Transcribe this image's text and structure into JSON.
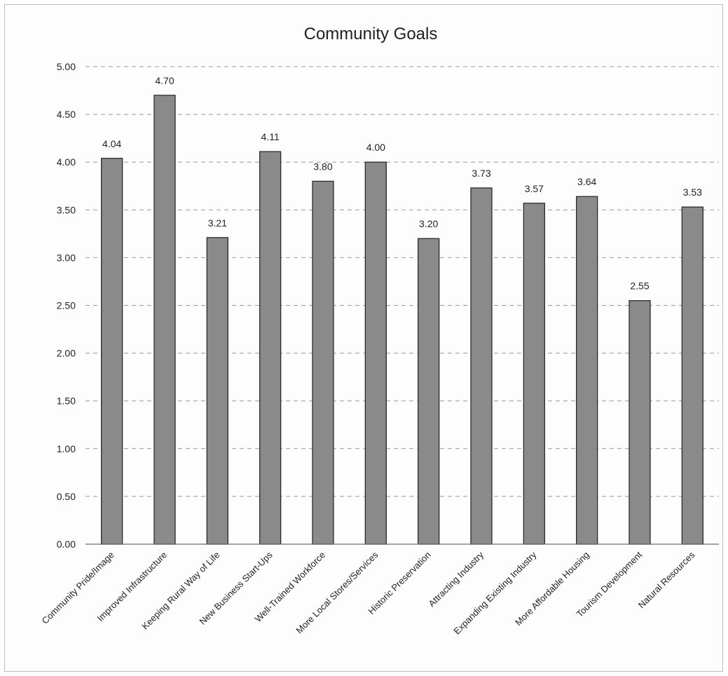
{
  "chart_data": {
    "type": "bar",
    "title": "Community Goals",
    "xlabel": "",
    "ylabel": "",
    "ylim": [
      0,
      5
    ],
    "ytick_step": 0.5,
    "ytick_labels": [
      "0.00",
      "0.50",
      "1.00",
      "1.50",
      "2.00",
      "2.50",
      "3.00",
      "3.50",
      "4.00",
      "4.50",
      "5.00"
    ],
    "grid": true,
    "legend": "none",
    "bar_color": "#8a8a8a",
    "categories": [
      "Community Pride/Image",
      "Improved Infrastructure",
      "Keeping Rural Way of Life",
      "New Business Start-Ups",
      "Well-Trained Workforce",
      "More Local Stores/Services",
      "Historic Preservation",
      "Attracting Industry",
      "Expanding Existing Industry",
      "More Affordable Housing",
      "Tourism Development",
      "Natural Resources"
    ],
    "values": [
      4.04,
      4.7,
      3.21,
      4.11,
      3.8,
      4.0,
      3.2,
      3.73,
      3.57,
      3.64,
      2.55,
      3.53
    ],
    "value_labels": [
      "4.04",
      "4.70",
      "3.21",
      "4.11",
      "3.80",
      "4.00",
      "3.20",
      "3.73",
      "3.57",
      "3.64",
      "2.55",
      "3.53"
    ]
  }
}
